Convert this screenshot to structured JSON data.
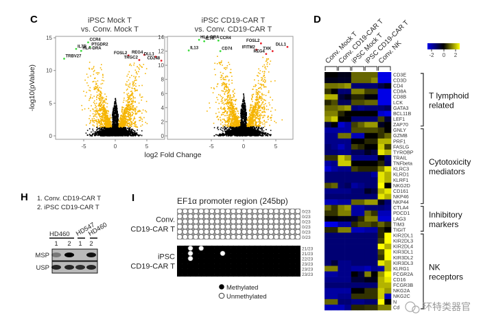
{
  "panel_letters": {
    "c": "C",
    "d": "D",
    "h": "H",
    "i": "I"
  },
  "shared_xlabel": "log2 Fold Change",
  "chart_data": [
    {
      "type": "scatter",
      "title_line1": "iPSC Mock T",
      "title_line2": "vs. Conv. Mock T",
      "xlabel": "log2 Fold Change",
      "ylabel": "-log10(pValue)",
      "xlim": [
        -8.5,
        7.8
      ],
      "ylim": [
        0,
        15.5
      ],
      "xticks": [
        "-5",
        "0",
        "5"
      ],
      "yticks": [
        "0",
        "5",
        "10",
        "15"
      ],
      "colors": {
        "significant": "#f5b400",
        "nonsignificant": "#000000",
        "down_labeled": "#3ddc3d",
        "up_labeled": "#e8202a"
      },
      "labeled_genes": [
        {
          "gene": "CCR4",
          "x": -4.3,
          "y": 14.3,
          "dir": "down"
        },
        {
          "gene": "IL7R",
          "x": -6.2,
          "y": 13.3,
          "dir": "down"
        },
        {
          "gene": "PTGDR2",
          "x": -4.0,
          "y": 13.6,
          "dir": "down"
        },
        {
          "gene": "HLA-DRA",
          "x": -5.4,
          "y": 13.0,
          "dir": "down"
        },
        {
          "gene": "TRBV27",
          "x": -8.1,
          "y": 11.8,
          "dir": "down"
        },
        {
          "gene": "FOSL2",
          "x": 2.1,
          "y": 12.3,
          "dir": "up"
        },
        {
          "gene": "TRGC2",
          "x": 3.8,
          "y": 11.6,
          "dir": "up"
        },
        {
          "gene": "REG4",
          "x": 4.6,
          "y": 12.4,
          "dir": "up"
        },
        {
          "gene": "DLL1",
          "x": 6.4,
          "y": 12.1,
          "dir": "up"
        },
        {
          "gene": "CD248",
          "x": 7.3,
          "y": 11.5,
          "dir": "up"
        }
      ]
    },
    {
      "type": "scatter",
      "title_line1": "iPSC CD19-CAR T",
      "title_line2": "vs. Conv. CD19-CAR T",
      "xlabel": "log2 Fold Change",
      "ylabel": "-log10(pValue)",
      "xlim": [
        -9.5,
        7.8
      ],
      "ylim": [
        0,
        14.3
      ],
      "xticks": [
        "-5",
        "0",
        "5"
      ],
      "yticks": [
        "0",
        "2",
        "4",
        "6",
        "8",
        "10",
        "12",
        "14"
      ],
      "labeled_genes": [
        {
          "gene": "HLA-DRA",
          "x": -6.9,
          "y": 13.6,
          "dir": "down"
        },
        {
          "gene": "IL7R",
          "x": -6.1,
          "y": 13.4,
          "dir": "down"
        },
        {
          "gene": "CCR4",
          "x": -3.9,
          "y": 13.5,
          "dir": "down"
        },
        {
          "gene": "CD74",
          "x": -3.6,
          "y": 12.0,
          "dir": "down"
        },
        {
          "gene": "IL13",
          "x": -8.5,
          "y": 12.1,
          "dir": "down"
        },
        {
          "gene": "FOSL2",
          "x": 2.7,
          "y": 13.1,
          "dir": "up"
        },
        {
          "gene": "IFITM2",
          "x": 2.0,
          "y": 12.2,
          "dir": "up"
        },
        {
          "gene": "TXK",
          "x": 4.5,
          "y": 12.0,
          "dir": "up"
        },
        {
          "gene": "REG4",
          "x": 3.5,
          "y": 11.6,
          "dir": "up"
        },
        {
          "gene": "DLL1",
          "x": 6.8,
          "y": 12.6,
          "dir": "up"
        }
      ]
    },
    {
      "type": "heatmap",
      "columns": [
        "Conv. Mock T",
        "Conv. CD19-CAR T",
        "iPSC Mock T",
        "iPSC CD19-CAR T",
        "Conv. NK"
      ],
      "replicates_per_column": 2,
      "colorbar": {
        "ticks": [
          "-2",
          "0",
          "2"
        ],
        "low": "#0000e6",
        "mid": "#000000",
        "high": "#ffff00",
        "range": [
          -3,
          3
        ]
      },
      "rows": [
        "CD3E",
        "CD3D",
        "CD4",
        "CD8A",
        "CD8B",
        "LCK",
        "GATA3",
        "BCL11B",
        "LEF1",
        "ZAP70",
        "GNLY",
        "GZMB",
        "PRF1",
        "FASLG",
        "TYROBP",
        "TRAIL",
        "TNFbeta",
        "KLRC3",
        "KLRD1",
        "KLRF1",
        "NKG2D",
        "CD161",
        "NKP46",
        "NKP44",
        "CTLA4",
        "PDCD1",
        "LAG3",
        "TIM3",
        "TIGIT",
        "KIR2DL1",
        "KIR2DL3",
        "KIR2DL4",
        "KIR3DL1",
        "KIR3DL2",
        "KIR3DL3",
        "KLRG1",
        "FCGR2A",
        "CD16",
        "FCGR3B",
        "NKG2A",
        "NKG2C",
        "N",
        "Cd"
      ],
      "groups": [
        {
          "label_line1": "T lymphoid",
          "label_line2": "related",
          "first_row": 0,
          "last_row": 9
        },
        {
          "label_line1": "Cytotoxicity",
          "label_line2": "mediators",
          "first_row": 10,
          "last_row": 23
        },
        {
          "label_line1": "Inhibitory",
          "label_line2": "markers",
          "first_row": 24,
          "last_row": 28
        },
        {
          "label_line1": "NK",
          "label_line2": "receptors",
          "first_row": 29,
          "last_row": 42
        }
      ],
      "values": [
        [
          0,
          0,
          -0.2,
          -0.2,
          0.8,
          0.8,
          0.8,
          0.8,
          -2,
          -2
        ],
        [
          -0.2,
          -0.2,
          -0.3,
          -0.3,
          0.8,
          0.8,
          0.8,
          1.1,
          -2,
          -2
        ],
        [
          0.9,
          0.9,
          1,
          1.2,
          -1,
          -1,
          -1,
          -1,
          -0.6,
          -0.2
        ],
        [
          0.4,
          0,
          -1,
          -1,
          1,
          1,
          0.5,
          0.5,
          -2,
          -2
        ],
        [
          1.4,
          1.4,
          -0.5,
          -0.2,
          0.3,
          0.3,
          -0.1,
          -0.1,
          -2,
          -2
        ],
        [
          0.3,
          0.6,
          -0.8,
          -0.8,
          0.6,
          0.6,
          0.8,
          0.8,
          -2,
          -2
        ],
        [
          0.8,
          0.8,
          1,
          1.2,
          -1,
          -1.2,
          -1,
          -1,
          -1,
          -0.8
        ],
        [
          1,
          1,
          0.3,
          0,
          0,
          0,
          0,
          0,
          -1.8,
          -2.2
        ],
        [
          1.2,
          1.6,
          0,
          0,
          -1,
          -1,
          -1,
          -1,
          0.5,
          -0.5
        ],
        [
          -0.6,
          0,
          -1.8,
          -1.4,
          0.5,
          0.8,
          1.2,
          1.2,
          -0.3,
          0
        ],
        [
          -1.4,
          -1.4,
          -1.4,
          -1.4,
          0.6,
          0.6,
          0.6,
          0.6,
          0.4,
          0
        ],
        [
          -1.2,
          -1.2,
          0.9,
          0.9,
          -1.6,
          -1.6,
          0,
          0,
          0.4,
          0.8
        ],
        [
          -1.2,
          -1.2,
          -1.2,
          -1.2,
          0,
          0,
          0.3,
          0.3,
          1.4,
          1.4
        ],
        [
          -1,
          -1.2,
          -1.6,
          -1.2,
          0.5,
          0.3,
          0,
          0,
          1.6,
          0.5
        ],
        [
          -1,
          -1,
          -1.2,
          -1.2,
          -0.8,
          -0.8,
          -0.3,
          -0.6,
          1.8,
          1.4
        ],
        [
          0.4,
          0.4,
          1.6,
          1.2,
          -1.2,
          -1.2,
          -1.2,
          -1.2,
          0,
          -1
        ],
        [
          -1.4,
          -1.2,
          1.6,
          1.6,
          0,
          0,
          0,
          0,
          0.3,
          -0.8
        ],
        [
          -1.8,
          -1.4,
          -1.2,
          -1.2,
          0.5,
          0.3,
          0.3,
          0.3,
          1,
          1.8
        ],
        [
          -1,
          -1,
          -1,
          -1,
          -1,
          -1,
          -1,
          -1.4,
          1.8,
          1.4
        ],
        [
          -1,
          -1,
          -1,
          -1,
          -1,
          -1,
          -1,
          -1,
          1.8,
          1.4
        ],
        [
          0.6,
          0.8,
          -1,
          -0.8,
          -1.4,
          -1.2,
          -1,
          -1,
          2,
          0
        ],
        [
          -1.2,
          -1.2,
          -1.2,
          -1.2,
          -1,
          -1,
          -0.3,
          -0.6,
          1.4,
          1.8
        ],
        [
          -1,
          -1,
          -1,
          -1,
          -1,
          -1,
          -1,
          -1,
          1.8,
          1.4
        ],
        [
          -1.6,
          -1.6,
          -1.4,
          -1.4,
          0.8,
          0.8,
          1.2,
          1.2,
          -0.3,
          -1
        ],
        [
          0.8,
          0.4,
          1,
          1.2,
          -1.4,
          -1.4,
          -1,
          -1,
          -1,
          -1.2
        ],
        [
          0.4,
          0.4,
          1,
          1,
          -1.4,
          -1.4,
          0.8,
          0.4,
          -1.6,
          -1.6
        ],
        [
          0,
          0,
          -0.2,
          -0.2,
          -0.4,
          0.3,
          1,
          1,
          -1.8,
          -1.8
        ],
        [
          -2,
          -2,
          -1.4,
          -1.4,
          0.3,
          0.6,
          0.6,
          0.4,
          0.8,
          0.4
        ],
        [
          0.3,
          0.3,
          1,
          1,
          -1.6,
          -1.6,
          -1.4,
          -1.4,
          0.3,
          0
        ],
        [
          -1,
          -1,
          -1,
          -1,
          -1,
          -1,
          -1,
          -1,
          0.3,
          2
        ],
        [
          -1,
          -1,
          -1,
          -1,
          -1,
          -1,
          -1,
          -1,
          0.5,
          2
        ],
        [
          -1,
          -1,
          -1,
          -1,
          -1,
          -1,
          -1,
          -1,
          2,
          1.4
        ],
        [
          -1,
          -1,
          -1,
          -1,
          -1,
          -1,
          -1,
          -1,
          0.6,
          2
        ],
        [
          -1,
          -1,
          -1,
          -1,
          -1,
          -1,
          -1,
          -1,
          0.4,
          2
        ],
        [
          -1,
          -0.5,
          -1.2,
          -1.2,
          -1,
          -1,
          -1,
          -1,
          1.8,
          1.4
        ],
        [
          1,
          1,
          -1.2,
          -1.2,
          -1.4,
          -1.4,
          -1.6,
          -1.2,
          -1.4,
          1.4
        ],
        [
          -1.4,
          -1.4,
          -1.2,
          -1.2,
          0,
          -0.5,
          1,
          0,
          1.2,
          2
        ],
        [
          -1.2,
          -1.2,
          -1.2,
          -1.2,
          -0.5,
          -0.5,
          -0.2,
          -0.2,
          1.4,
          1.8
        ],
        [
          -1,
          -1,
          -1,
          -1,
          -1,
          -1,
          -1,
          -1,
          1.4,
          1.4
        ],
        [
          -1.4,
          -1.4,
          -1.4,
          -1.4,
          0,
          0,
          0.4,
          0.4,
          1.6,
          1.2
        ],
        [
          -1.4,
          -1.4,
          -1.2,
          -1.2,
          0.4,
          0.4,
          0.4,
          0.4,
          1.6,
          -1.6
        ],
        [
          0.8,
          0.8,
          -1,
          -1,
          -1.2,
          -1.2,
          -1,
          -1,
          2,
          0
        ],
        [
          -1.6,
          -1.6,
          -1.6,
          -1.2,
          0.3,
          0.3,
          0.4,
          0.4,
          1,
          1
        ]
      ]
    }
  ],
  "panel_h": {
    "legend": [
      "1. Conv. CD19-CAR T",
      "2. iPSC CD19-CAR T"
    ],
    "donors": [
      "HD460",
      "HD547",
      "HD460"
    ],
    "lanes": [
      "1",
      "2",
      "1",
      "2"
    ],
    "rows": [
      "MSP",
      "USP"
    ],
    "band_intensity": {
      "MSP": [
        0.35,
        1.0,
        0.0,
        0.9
      ],
      "USP": [
        0.8,
        0.8,
        0.75,
        0.8
      ]
    }
  },
  "panel_i": {
    "title": "EF1α promoter region (245bp)",
    "cpg_sites": 23,
    "groups": [
      {
        "label_line1": "Conv.",
        "label_line2": "CD19-CAR T",
        "counts": [
          "0/23",
          "0/23",
          "0/23",
          "0/23",
          "0/23",
          "0/23"
        ],
        "methylated_rows": false,
        "exceptions": [
          [],
          [],
          [],
          [],
          [],
          []
        ]
      },
      {
        "label_line1": "iPSC",
        "label_line2": "CD19-CAR T",
        "counts": [
          "21/23",
          "21/23",
          "22/23",
          "23/23",
          "23/23",
          "23/23"
        ],
        "methylated_rows": true,
        "exceptions": [
          [
            2,
            4
          ],
          [
            2,
            8
          ],
          [
            2
          ],
          [],
          [],
          []
        ]
      }
    ],
    "legend": {
      "methylated": "Methylated",
      "unmethylated": "Unmethylated"
    }
  },
  "watermark": "环特类器官"
}
